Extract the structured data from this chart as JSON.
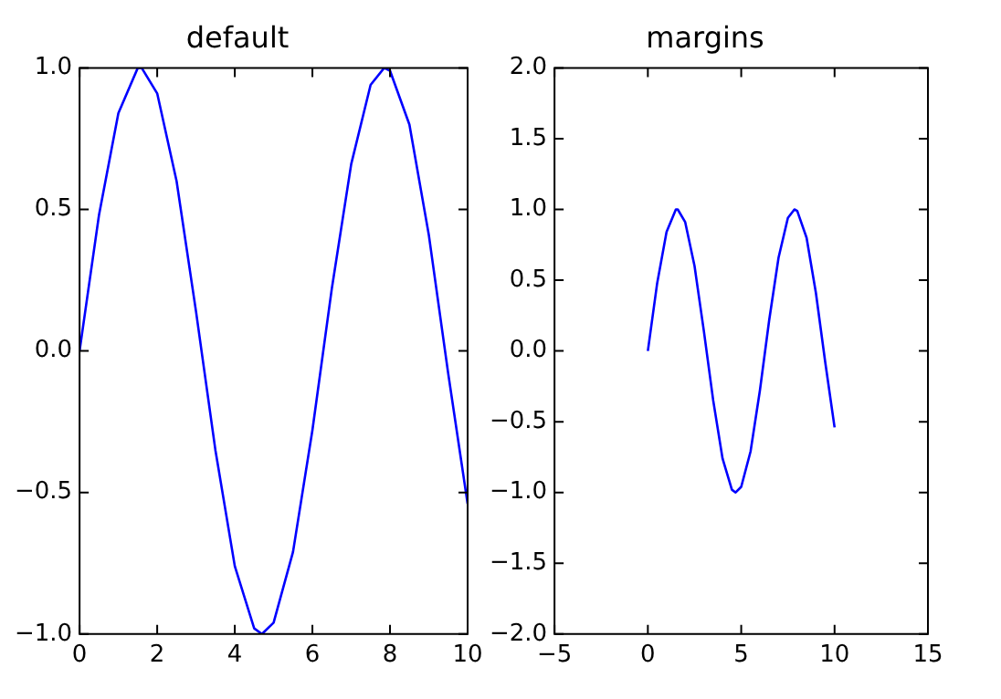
{
  "chart_data": [
    {
      "type": "line",
      "title": "default",
      "x": [
        0,
        0.5,
        1,
        1.5,
        1.6,
        2,
        2.5,
        3,
        3.5,
        4,
        4.5,
        4.7,
        5,
        5.5,
        6,
        6.5,
        7,
        7.5,
        7.85,
        8,
        8.5,
        9,
        9.5,
        10
      ],
      "series": [
        {
          "color": "#0000ff",
          "values": [
            0,
            0.48,
            0.84,
            1.0,
            1.0,
            0.91,
            0.6,
            0.14,
            -0.35,
            -0.76,
            -0.98,
            -1.0,
            -0.96,
            -0.71,
            -0.28,
            0.22,
            0.66,
            0.94,
            1.0,
            0.99,
            0.8,
            0.41,
            -0.08,
            -0.54
          ]
        }
      ],
      "xlim": [
        0,
        10
      ],
      "xticks": [
        0,
        2,
        4,
        6,
        8,
        10
      ],
      "ylim": [
        -1,
        1
      ],
      "yticks": [
        {
          "value": -1,
          "label": "−1.0"
        },
        {
          "value": -0.5,
          "label": "−0.5"
        },
        {
          "value": 0,
          "label": "0.0"
        },
        {
          "value": 0.5,
          "label": "0.5"
        },
        {
          "value": 1,
          "label": "1.0"
        }
      ],
      "marker": "none",
      "line_style": "solid",
      "legend": false,
      "grid": false
    },
    {
      "type": "line",
      "title": "margins",
      "x": [
        0,
        0.5,
        1,
        1.5,
        1.6,
        2,
        2.5,
        3,
        3.5,
        4,
        4.5,
        4.7,
        5,
        5.5,
        6,
        6.5,
        7,
        7.5,
        7.85,
        8,
        8.5,
        9,
        9.5,
        10
      ],
      "series": [
        {
          "color": "#0000ff",
          "values": [
            0,
            0.48,
            0.84,
            1.0,
            1.0,
            0.91,
            0.6,
            0.14,
            -0.35,
            -0.76,
            -0.98,
            -1.0,
            -0.96,
            -0.71,
            -0.28,
            0.22,
            0.66,
            0.94,
            1.0,
            0.99,
            0.8,
            0.41,
            -0.08,
            -0.54
          ]
        }
      ],
      "xlim": [
        -5,
        15
      ],
      "xticks": [
        {
          "value": -5,
          "label": "−5"
        },
        0,
        5,
        10,
        15
      ],
      "ylim": [
        -2,
        2
      ],
      "yticks": [
        {
          "value": -2,
          "label": "−2.0"
        },
        {
          "value": -1.5,
          "label": "−1.5"
        },
        {
          "value": -1,
          "label": "−1.0"
        },
        {
          "value": -0.5,
          "label": "−0.5"
        },
        {
          "value": 0,
          "label": "0.0"
        },
        {
          "value": 0.5,
          "label": "0.5"
        },
        {
          "value": 1,
          "label": "1.0"
        },
        {
          "value": 1.5,
          "label": "1.5"
        },
        {
          "value": 2,
          "label": "2.0"
        }
      ],
      "marker": "none",
      "line_style": "solid",
      "legend": false,
      "grid": false
    }
  ]
}
